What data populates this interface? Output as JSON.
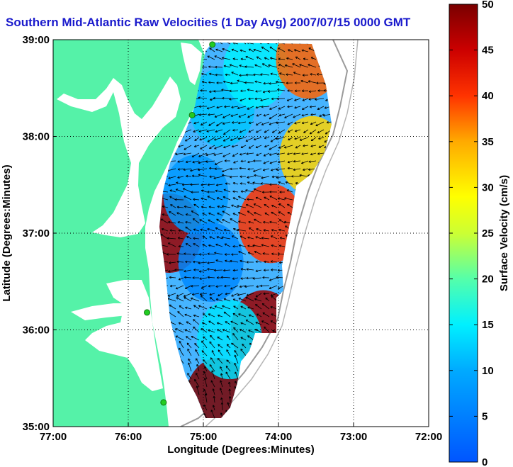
{
  "title": "Southern Mid-Atlantic Raw Velocities (1 Day Avg) 2007/07/15 0000 GMT",
  "chart_data": {
    "type": "heatmap",
    "xlabel": "Longitude (Degrees:Minutes)",
    "ylabel": "Latitude (Degrees:Minutes)",
    "x_ticks": [
      "77:00",
      "76:00",
      "75:00",
      "74:00",
      "73:00",
      "72:00"
    ],
    "y_ticks": [
      "39:00",
      "38:00",
      "37:00",
      "36:00",
      "35:00"
    ],
    "xlim": [
      -77,
      -72
    ],
    "ylim": [
      35,
      39
    ],
    "colorbar": {
      "label": "Surface Velocity (cm/s)",
      "min": 0,
      "max": 50,
      "ticks": [
        "50",
        "45",
        "40",
        "35",
        "30",
        "25",
        "20",
        "15",
        "10",
        "5",
        "0"
      ]
    },
    "grid": true,
    "station_markers": [
      {
        "lon": -74.88,
        "lat": 38.95
      },
      {
        "lon": -75.15,
        "lat": 38.22
      },
      {
        "lon": -75.75,
        "lat": 36.18
      },
      {
        "lon": -75.53,
        "lat": 35.25
      }
    ],
    "velocity_regions": [
      {
        "lon": -74.75,
        "lat": 38.3,
        "value": 12
      },
      {
        "lon": -74.3,
        "lat": 38.7,
        "value": 15
      },
      {
        "lon": -73.6,
        "lat": 38.8,
        "value": 38
      },
      {
        "lon": -73.55,
        "lat": 37.8,
        "value": 32
      },
      {
        "lon": -75.45,
        "lat": 37.0,
        "value": 48
      },
      {
        "lon": -75.1,
        "lat": 37.4,
        "value": 8
      },
      {
        "lon": -74.9,
        "lat": 36.7,
        "value": 6
      },
      {
        "lon": -74.1,
        "lat": 37.1,
        "value": 40
      },
      {
        "lon": -74.2,
        "lat": 36.0,
        "value": 48
      },
      {
        "lon": -74.8,
        "lat": 35.3,
        "value": 50
      },
      {
        "lon": -74.65,
        "lat": 35.9,
        "value": 14
      }
    ]
  },
  "colors": {
    "land": "#55f2a8",
    "title": "#1a1acc",
    "marker": "#22cc22"
  },
  "icons": [
    "velocity-arrow-icon",
    "station-marker-icon"
  ]
}
